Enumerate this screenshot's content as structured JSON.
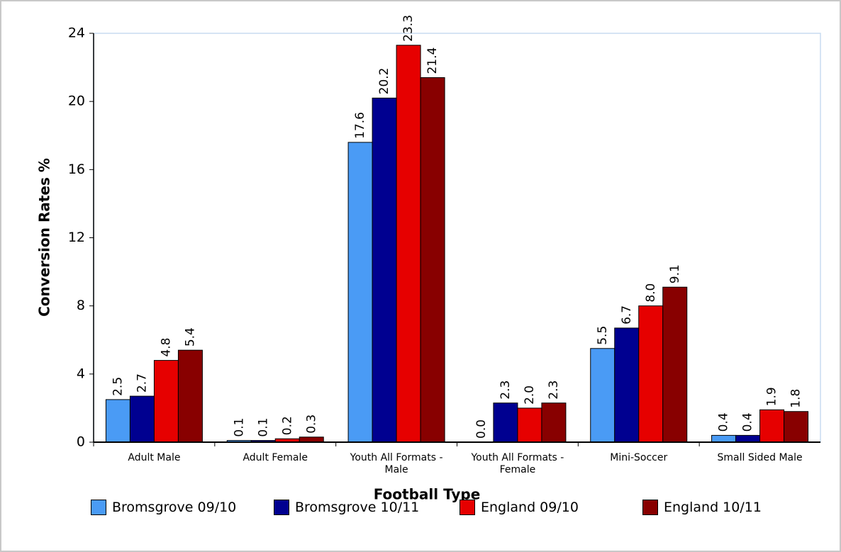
{
  "chart_data": {
    "type": "bar",
    "x_label": "Football Type",
    "y_label": "Conversion Rates %",
    "categories": [
      "Adult Male",
      "Adult Female",
      "Youth All Formats - Male",
      "Youth All Formats - Female",
      "Mini-Soccer",
      "Small Sided Male"
    ],
    "series": [
      {
        "name": "Bromsgrove 09/10",
        "color": "#4a9bf5",
        "values": [
          2.5,
          0.1,
          17.6,
          0,
          5.5,
          0.4
        ],
        "value_labels": [
          "2.5",
          "0.1",
          "17.6",
          "0.0",
          "5.5",
          "0.4"
        ]
      },
      {
        "name": "Bromsgrove 10/11",
        "color": "#000090",
        "values": [
          2.7,
          0.1,
          20.2,
          2.3,
          6.7,
          0.4
        ],
        "value_labels": [
          "2.7",
          "0.1",
          "20.2",
          "2.3",
          "6.7",
          "0.4"
        ]
      },
      {
        "name": "England 09/10",
        "color": "#e60000",
        "values": [
          4.8,
          0.2,
          23.3,
          2,
          8,
          1.9
        ],
        "value_labels": [
          "4.8",
          "0.2",
          "23.3",
          "2.0",
          "8.0",
          "1.9"
        ]
      },
      {
        "name": "England 10/11",
        "color": "#880000",
        "values": [
          5.4,
          0.3,
          21.4,
          2.3,
          9.1,
          1.8
        ],
        "value_labels": [
          "5.4",
          "0.3",
          "21.4",
          "2.3",
          "9.1",
          "1.8"
        ]
      }
    ],
    "ylim": [
      0,
      24
    ],
    "yticks": [
      0,
      4,
      8,
      12,
      16,
      20,
      24
    ],
    "grid": false
  }
}
